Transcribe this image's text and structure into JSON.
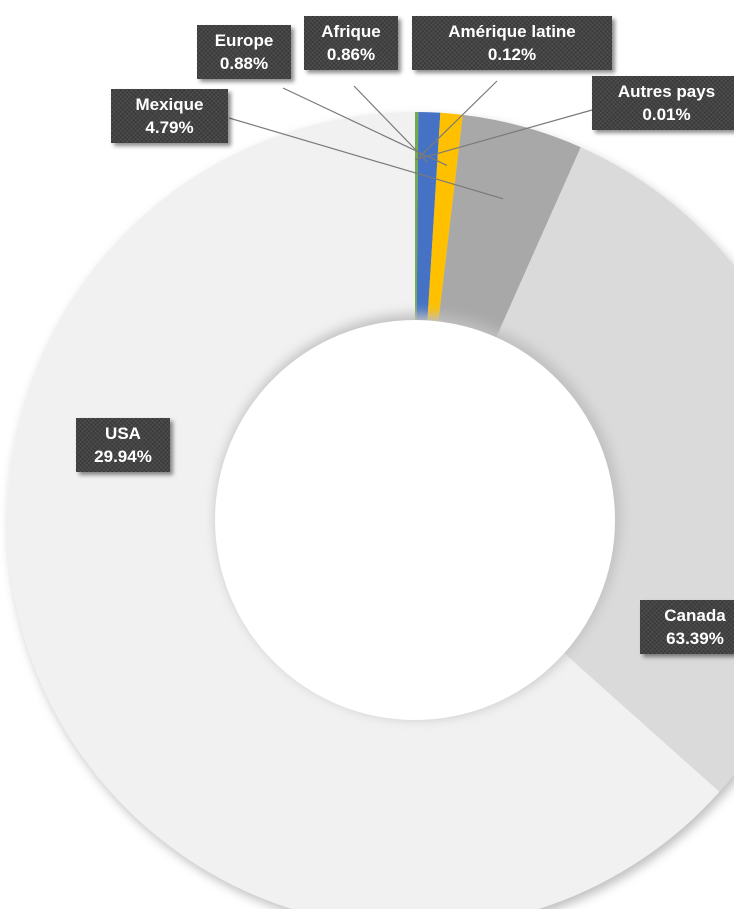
{
  "chart_data": {
    "type": "pie",
    "variant": "doughnut",
    "title": "",
    "series": [
      {
        "name": "Canada",
        "value": 63.39,
        "label": "63.39%",
        "color": "#f1f1f1"
      },
      {
        "name": "USA",
        "value": 29.94,
        "label": "29.94%",
        "color": "#dadada"
      },
      {
        "name": "Mexique",
        "value": 4.79,
        "label": "4.79%",
        "color": "#a8a8a8"
      },
      {
        "name": "Europe",
        "value": 0.88,
        "label": "0.88%",
        "color": "#ffc000"
      },
      {
        "name": "Afrique",
        "value": 0.86,
        "label": "0.86%",
        "color": "#4472c4"
      },
      {
        "name": "Amérique latine",
        "value": 0.12,
        "label": "0.12%",
        "color": "#70ad47"
      },
      {
        "name": "Autres pays",
        "value": 0.01,
        "label": "0.01%",
        "color": "#264478"
      }
    ],
    "legend": "none",
    "data_labels": "category-and-percent"
  }
}
